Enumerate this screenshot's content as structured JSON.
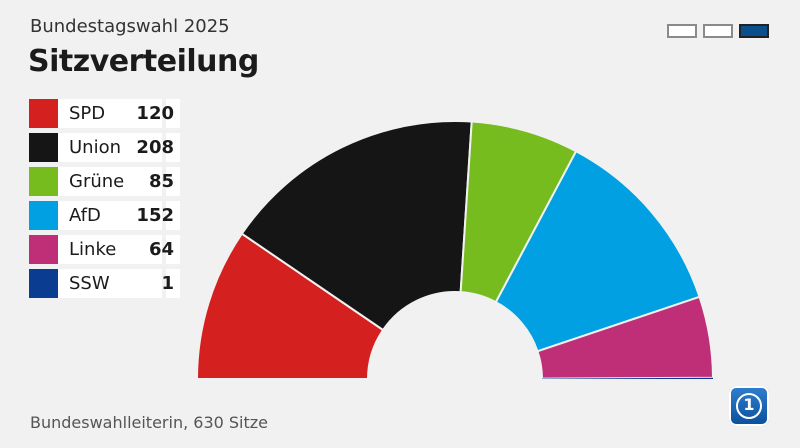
{
  "header": {
    "supertitle": "Bundestagswahl 2025",
    "title": "Sitzverteilung"
  },
  "pager": {
    "count": 3,
    "active_index": 2
  },
  "legend": [
    {
      "label": "SPD",
      "value": "120",
      "color": "#d52020"
    },
    {
      "label": "Union",
      "value": "208",
      "color": "#151515"
    },
    {
      "label": "Grüne",
      "value": "85",
      "color": "#77bc1f"
    },
    {
      "label": "AfD",
      "value": "152",
      "color": "#00a0e2"
    },
    {
      "label": "Linke",
      "value": "64",
      "color": "#bf2f77"
    },
    {
      "label": "SSW",
      "value": "1",
      "color": "#0a3d91"
    }
  ],
  "chart_data": {
    "type": "pie",
    "subtype": "semicircle-parliament",
    "categories": [
      "SPD",
      "Union",
      "Grüne",
      "AfD",
      "Linke",
      "SSW"
    ],
    "values": [
      120,
      208,
      85,
      152,
      64,
      1
    ],
    "total": 630,
    "colors": [
      "#d52020",
      "#151515",
      "#77bc1f",
      "#00a0e2",
      "#bf2f77",
      "#0a3d91"
    ],
    "title": "Sitzverteilung"
  },
  "footer": {
    "source": "Bundeswahlleiterin, 630 Sitze"
  },
  "logo": {
    "icon": "tagesschau-one-logo-icon"
  }
}
